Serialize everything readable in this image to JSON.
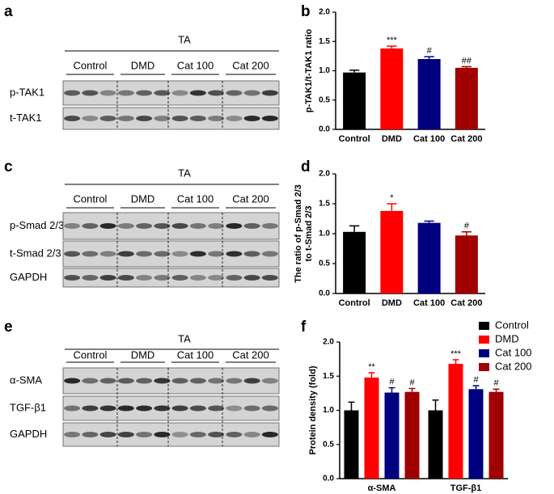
{
  "blots": [
    {
      "letter": "a",
      "tissue": "TA",
      "groups": [
        "Control",
        "DMD",
        "Cat 100",
        "Cat 200"
      ],
      "rows": [
        "p-TAK1",
        "t-TAK1"
      ]
    },
    {
      "letter": "c",
      "tissue": "TA",
      "groups": [
        "Control",
        "DMD",
        "Cat 100",
        "Cat 200"
      ],
      "rows": [
        "p-Smad 2/3",
        "t-Smad 2/3",
        "GAPDH"
      ]
    },
    {
      "letter": "e",
      "tissue": "TA",
      "groups": [
        "Control",
        "DMD",
        "Cat 100",
        "Cat 200"
      ],
      "rows": [
        "α-SMA",
        "TGF-β1",
        "GAPDH"
      ]
    }
  ],
  "chart_data": [
    {
      "type": "bar",
      "panel": "b",
      "ylabel": [
        "p-TAK1/t-TAK1 ratio"
      ],
      "categories": [
        "Control",
        "DMD",
        "Cat 100",
        "Cat 200"
      ],
      "values": [
        0.97,
        1.38,
        1.2,
        1.05
      ],
      "errors": [
        0.04,
        0.04,
        0.04,
        0.02
      ],
      "colors": [
        "#000000",
        "#ff0000",
        "#000080",
        "#a00000"
      ],
      "annotations": [
        "",
        "***",
        "#",
        "##"
      ],
      "ylim": [
        0,
        2.0
      ],
      "yticks": [
        {
          "value": 0,
          "label": "0.0"
        },
        {
          "value": 0.5,
          "label": "0.5"
        },
        {
          "value": 1,
          "label": "1.0"
        },
        {
          "value": 1.5,
          "label": "1.5"
        },
        {
          "value": 2,
          "label": "2.0"
        }
      ]
    },
    {
      "type": "bar",
      "panel": "d",
      "ylabel": [
        "The ratio of p-Smad 2/3",
        "to t-Smad 2/3"
      ],
      "categories": [
        "Control",
        "DMD",
        "Cat 100",
        "Cat 200"
      ],
      "values": [
        1.03,
        1.38,
        1.18,
        0.97
      ],
      "errors": [
        0.1,
        0.12,
        0.03,
        0.06
      ],
      "colors": [
        "#000000",
        "#ff0000",
        "#000080",
        "#a00000"
      ],
      "annotations": [
        null,
        "*",
        null,
        "#"
      ],
      "ylim": [
        0,
        2.0
      ],
      "yticks": [
        {
          "value": 0,
          "label": "0.0"
        },
        {
          "value": 0.5,
          "label": "0.5"
        },
        {
          "value": 1,
          "label": "1.0"
        },
        {
          "value": 1.5,
          "label": "1.5"
        },
        {
          "value": 2,
          "label": "2.0"
        }
      ]
    },
    {
      "type": "grouped-bar",
      "panel": "f",
      "ylabel": [
        "Protein density (fold)"
      ],
      "categories": [
        "α-SMA",
        "TGF-β1"
      ],
      "series": [
        {
          "name": "Control",
          "color": "#000000",
          "values": [
            1.0,
            1.0
          ],
          "errors": [
            0.12,
            0.15
          ],
          "annotations": [
            null,
            null
          ]
        },
        {
          "name": "DMD",
          "color": "#ff0000",
          "values": [
            1.48,
            1.68
          ],
          "errors": [
            0.07,
            0.06
          ],
          "annotations": [
            "**",
            "***"
          ]
        },
        {
          "name": "Cat 100",
          "color": "#000080",
          "values": [
            1.26,
            1.31
          ],
          "errors": [
            0.07,
            0.05
          ],
          "annotations": [
            "#",
            "#"
          ]
        },
        {
          "name": "Cat 200",
          "color": "#a00000",
          "values": [
            1.27,
            1.27
          ],
          "errors": [
            0.05,
            0.04
          ],
          "annotations": [
            "#",
            "#"
          ]
        }
      ],
      "legend": "top-right",
      "ylim": [
        0,
        2.0
      ],
      "yticks": [
        {
          "value": 0,
          "label": "0.0"
        },
        {
          "value": 0.5,
          "label": "0.5"
        },
        {
          "value": 1,
          "label": "1.0"
        },
        {
          "value": 1.5,
          "label": "1.5"
        },
        {
          "value": 2,
          "label": "2.0"
        }
      ]
    }
  ]
}
